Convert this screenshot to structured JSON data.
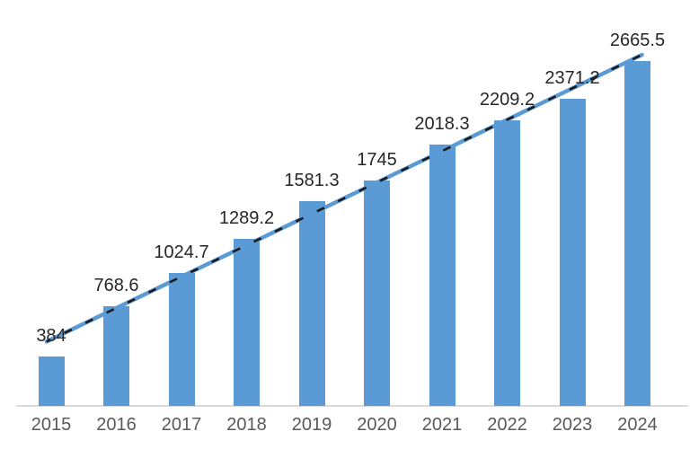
{
  "chart_data": {
    "type": "bar",
    "categories": [
      "2015",
      "2016",
      "2017",
      "2018",
      "2019",
      "2020",
      "2021",
      "2022",
      "2023",
      "2024"
    ],
    "values": [
      384,
      768.6,
      1024.7,
      1289.2,
      1581.3,
      1745,
      2018.3,
      2209.2,
      2371.2,
      2665.5
    ],
    "value_labels": [
      "384",
      "768.6",
      "1024.7",
      "1289.2",
      "1581.3",
      "1745",
      "2018.3",
      "2209.2",
      "2371.2",
      "2665.5"
    ],
    "ylim": [
      0,
      2800
    ],
    "grid": false,
    "legend": "none",
    "data_labels_position": "above-bars",
    "trendline": "linear-dashed",
    "colors": {
      "bar": "#5b9bd5",
      "trendline_blue": "#5b9bd5",
      "trendline_dash": "#1a1a1a",
      "axis_line": "#d9d9d9",
      "value_label_text": "#262626",
      "axis_label_text": "#595959",
      "background": "#ffffff"
    }
  }
}
